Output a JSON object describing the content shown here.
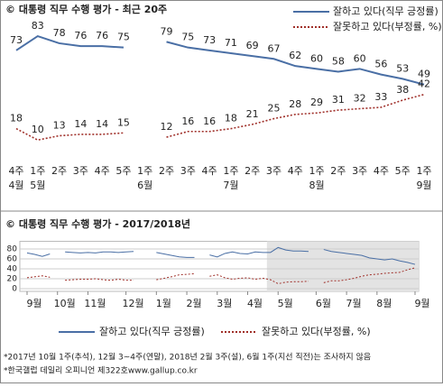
{
  "chart_data": [
    {
      "type": "line",
      "title": "© 대통령 직무 수행 평가 - 최근 20주",
      "categories": [
        "4주",
        "1주",
        "2주",
        "3주",
        "4주",
        "5주",
        "1주",
        "2주",
        "3주",
        "4주",
        "1주",
        "2주",
        "3주",
        "4주",
        "1주",
        "2주",
        "3주",
        "4주",
        "5주",
        "1주"
      ],
      "month_labels": [
        "4월",
        "5월",
        null,
        null,
        null,
        null,
        "6월",
        null,
        null,
        null,
        "7월",
        null,
        null,
        null,
        "8월",
        null,
        null,
        null,
        null,
        "9월"
      ],
      "series": [
        {
          "name": "잘하고 있다(직무 긍정률)",
          "color": "#4a6fa5",
          "style": "solid",
          "values": [
            73,
            83,
            78,
            76,
            76,
            75,
            null,
            79,
            75,
            73,
            71,
            69,
            67,
            62,
            60,
            58,
            60,
            56,
            53,
            49
          ]
        },
        {
          "name": "잘못하고 있다(부정률, %)",
          "color": "#a0302a",
          "style": "dotted",
          "values": [
            18,
            10,
            13,
            14,
            14,
            15,
            null,
            12,
            16,
            16,
            18,
            21,
            25,
            28,
            29,
            31,
            32,
            33,
            38,
            42
          ]
        }
      ],
      "ylim": [
        0,
        90
      ]
    },
    {
      "type": "line",
      "title": "© 대통령 직무 수행 평가 - 2017/2018년",
      "categories": [
        "9월",
        null,
        null,
        null,
        "10월",
        null,
        null,
        null,
        "11월",
        null,
        null,
        null,
        null,
        "12월",
        null,
        null,
        null,
        "1월",
        null,
        null,
        null,
        "2월",
        null,
        null,
        null,
        "3월",
        null,
        null,
        null,
        "4월",
        null,
        null,
        null,
        "5월",
        null,
        null,
        null,
        null,
        "6월",
        null,
        null,
        null,
        "7월",
        null,
        null,
        null,
        "8월",
        null,
        null,
        null,
        null,
        "9월"
      ],
      "series": [
        {
          "name": "잘하고 있다(직무 긍정률)",
          "color": "#4a6fa5",
          "style": "solid",
          "values": [
            72,
            69,
            65,
            70,
            null,
            74,
            73,
            72,
            73,
            72,
            74,
            74,
            73,
            74,
            75,
            null,
            null,
            73,
            70,
            67,
            64,
            63,
            63,
            null,
            68,
            64,
            71,
            74,
            71,
            70,
            74,
            73,
            73,
            83,
            78,
            76,
            76,
            75,
            null,
            79,
            75,
            73,
            71,
            69,
            67,
            62,
            60,
            58,
            60,
            56,
            53,
            49
          ]
        },
        {
          "name": "잘못하고 있다(부정률, %)",
          "color": "#a0302a",
          "style": "dotted",
          "values": [
            22,
            24,
            26,
            23,
            null,
            17,
            18,
            19,
            19,
            20,
            18,
            17,
            19,
            17,
            17,
            null,
            null,
            18,
            21,
            24,
            28,
            29,
            30,
            null,
            25,
            28,
            22,
            19,
            21,
            22,
            19,
            21,
            18,
            10,
            13,
            14,
            14,
            15,
            null,
            12,
            16,
            16,
            18,
            21,
            25,
            28,
            29,
            31,
            32,
            33,
            38,
            42
          ]
        }
      ],
      "ylim": [
        0,
        90
      ],
      "yticks": [
        0,
        20,
        40,
        60,
        80
      ],
      "grid": true
    }
  ],
  "footnotes": [
    "*2017년 10월 1주(추석), 12월 3~4주(연말), 2018년 2월 3주(설), 6월 1주(지선 직전)는 조사하지 않음",
    "*한국갤럽 데일리 오피니언 제322호www.gallup.co.kr"
  ]
}
